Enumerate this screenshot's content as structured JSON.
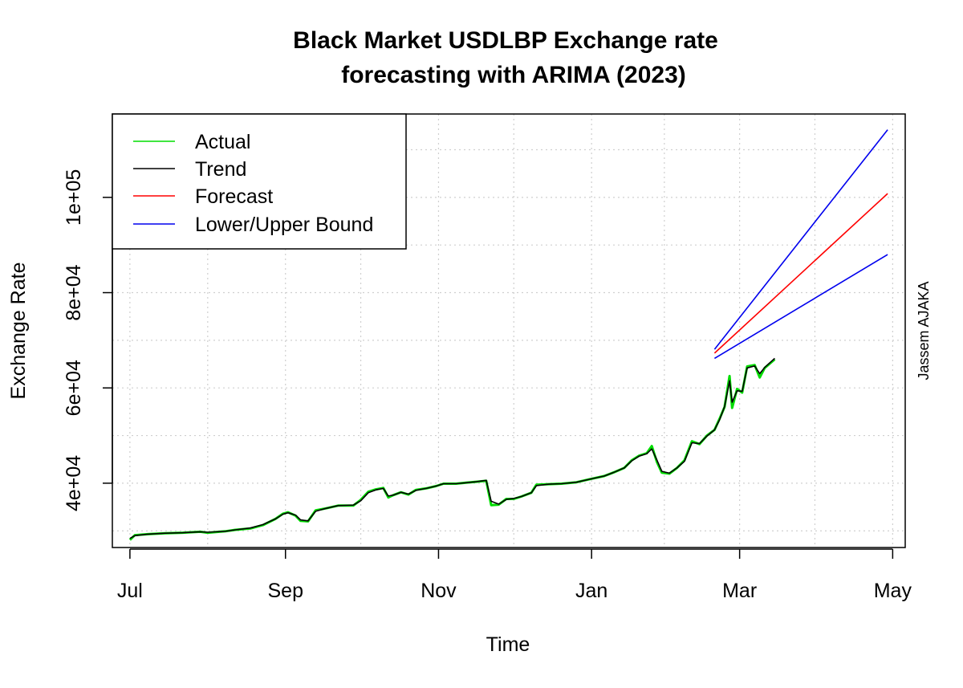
{
  "chart_data": {
    "type": "line",
    "title_line1": "Black Market USDLBP Exchange rate",
    "title_line2": "forecasting with ARIMA (2023)",
    "xlabel": "Time",
    "ylabel": "Exchange Rate",
    "side_text": "Jassem AJAKA",
    "x_range": [
      "2022-06-24",
      "2023-05-06"
    ],
    "ylim": [
      26500,
      117500
    ],
    "x_ticks": [
      {
        "date": "2022-07-01",
        "label": "Jul"
      },
      {
        "date": "2022-09-01",
        "label": "Sep"
      },
      {
        "date": "2022-11-01",
        "label": "Nov"
      },
      {
        "date": "2023-01-01",
        "label": "Jan"
      },
      {
        "date": "2023-03-01",
        "label": "Mar"
      },
      {
        "date": "2023-05-01",
        "label": "May"
      }
    ],
    "y_ticks": [
      {
        "value": 40000,
        "label": "4e+04"
      },
      {
        "value": 60000,
        "label": "6e+04"
      },
      {
        "value": 80000,
        "label": "8e+04"
      },
      {
        "value": 100000,
        "label": "1e+05"
      }
    ],
    "grid": true,
    "legend_position": "top-left",
    "series": [
      {
        "name": "Actual",
        "color": "#00dd00",
        "points": [
          [
            "2022-07-01",
            28100
          ],
          [
            "2022-07-03",
            29100
          ],
          [
            "2022-07-08",
            29300
          ],
          [
            "2022-07-15",
            29500
          ],
          [
            "2022-07-22",
            29600
          ],
          [
            "2022-07-29",
            29800
          ],
          [
            "2022-08-01",
            29600
          ],
          [
            "2022-08-08",
            29900
          ],
          [
            "2022-08-12",
            30200
          ],
          [
            "2022-08-18",
            30500
          ],
          [
            "2022-08-23",
            31200
          ],
          [
            "2022-08-28",
            32500
          ],
          [
            "2022-08-31",
            33600
          ],
          [
            "2022-09-02",
            33900
          ],
          [
            "2022-09-05",
            33200
          ],
          [
            "2022-09-07",
            32100
          ],
          [
            "2022-09-10",
            32000
          ],
          [
            "2022-09-13",
            34300
          ],
          [
            "2022-09-17",
            34700
          ],
          [
            "2022-09-22",
            35300
          ],
          [
            "2022-09-28",
            35300
          ],
          [
            "2022-10-01",
            36500
          ],
          [
            "2022-10-04",
            38200
          ],
          [
            "2022-10-07",
            38700
          ],
          [
            "2022-10-10",
            39000
          ],
          [
            "2022-10-12",
            37000
          ],
          [
            "2022-10-14",
            37500
          ],
          [
            "2022-10-17",
            38100
          ],
          [
            "2022-10-20",
            37600
          ],
          [
            "2022-10-23",
            38600
          ],
          [
            "2022-10-27",
            38900
          ],
          [
            "2022-10-31",
            39400
          ],
          [
            "2022-11-03",
            39900
          ],
          [
            "2022-11-08",
            39900
          ],
          [
            "2022-11-12",
            40100
          ],
          [
            "2022-11-16",
            40300
          ],
          [
            "2022-11-20",
            40500
          ],
          [
            "2022-11-22",
            35400
          ],
          [
            "2022-11-25",
            35500
          ],
          [
            "2022-11-28",
            36700
          ],
          [
            "2022-12-01",
            36700
          ],
          [
            "2022-12-04",
            37200
          ],
          [
            "2022-12-08",
            38000
          ],
          [
            "2022-12-10",
            39700
          ],
          [
            "2022-12-15",
            39800
          ],
          [
            "2022-12-20",
            39900
          ],
          [
            "2022-12-26",
            40200
          ],
          [
            "2022-12-31",
            40800
          ],
          [
            "2023-01-06",
            41500
          ],
          [
            "2023-01-10",
            42300
          ],
          [
            "2023-01-14",
            43200
          ],
          [
            "2023-01-17",
            44800
          ],
          [
            "2023-01-20",
            45800
          ],
          [
            "2023-01-23",
            46300
          ],
          [
            "2023-01-25",
            47800
          ],
          [
            "2023-01-27",
            44500
          ],
          [
            "2023-01-29",
            42200
          ],
          [
            "2023-02-01",
            42000
          ],
          [
            "2023-02-04",
            43200
          ],
          [
            "2023-02-07",
            44800
          ],
          [
            "2023-02-10",
            48800
          ],
          [
            "2023-02-13",
            48200
          ],
          [
            "2023-02-16",
            50000
          ],
          [
            "2023-02-19",
            51200
          ],
          [
            "2023-02-21",
            53500
          ],
          [
            "2023-02-23",
            56000
          ],
          [
            "2023-02-25",
            62500
          ],
          [
            "2023-02-26",
            55800
          ],
          [
            "2023-02-28",
            59800
          ],
          [
            "2023-03-02",
            59000
          ],
          [
            "2023-03-04",
            64500
          ],
          [
            "2023-03-07",
            64800
          ],
          [
            "2023-03-09",
            62200
          ],
          [
            "2023-03-11",
            64200
          ],
          [
            "2023-03-15",
            66000
          ]
        ]
      },
      {
        "name": "Trend",
        "color": "#000000",
        "points": [
          [
            "2022-07-01",
            28400
          ],
          [
            "2022-07-03",
            29000
          ],
          [
            "2022-07-08",
            29300
          ],
          [
            "2022-07-15",
            29500
          ],
          [
            "2022-07-22",
            29600
          ],
          [
            "2022-07-29",
            29800
          ],
          [
            "2022-08-01",
            29700
          ],
          [
            "2022-08-08",
            29900
          ],
          [
            "2022-08-12",
            30200
          ],
          [
            "2022-08-18",
            30600
          ],
          [
            "2022-08-23",
            31300
          ],
          [
            "2022-08-28",
            32500
          ],
          [
            "2022-08-31",
            33500
          ],
          [
            "2022-09-02",
            33800
          ],
          [
            "2022-09-05",
            33300
          ],
          [
            "2022-09-07",
            32300
          ],
          [
            "2022-09-10",
            32100
          ],
          [
            "2022-09-13",
            34100
          ],
          [
            "2022-09-17",
            34700
          ],
          [
            "2022-09-22",
            35300
          ],
          [
            "2022-09-28",
            35400
          ],
          [
            "2022-10-01",
            36300
          ],
          [
            "2022-10-04",
            38000
          ],
          [
            "2022-10-07",
            38600
          ],
          [
            "2022-10-10",
            38900
          ],
          [
            "2022-10-12",
            37300
          ],
          [
            "2022-10-14",
            37500
          ],
          [
            "2022-10-17",
            38100
          ],
          [
            "2022-10-20",
            37700
          ],
          [
            "2022-10-23",
            38500
          ],
          [
            "2022-10-27",
            38900
          ],
          [
            "2022-10-31",
            39400
          ],
          [
            "2022-11-03",
            39900
          ],
          [
            "2022-11-08",
            39900
          ],
          [
            "2022-11-12",
            40100
          ],
          [
            "2022-11-16",
            40300
          ],
          [
            "2022-11-20",
            40600
          ],
          [
            "2022-11-22",
            36200
          ],
          [
            "2022-11-25",
            35600
          ],
          [
            "2022-11-28",
            36600
          ],
          [
            "2022-12-01",
            36800
          ],
          [
            "2022-12-04",
            37200
          ],
          [
            "2022-12-08",
            38000
          ],
          [
            "2022-12-10",
            39500
          ],
          [
            "2022-12-15",
            39800
          ],
          [
            "2022-12-20",
            39900
          ],
          [
            "2022-12-26",
            40200
          ],
          [
            "2022-12-31",
            40800
          ],
          [
            "2023-01-06",
            41500
          ],
          [
            "2023-01-10",
            42300
          ],
          [
            "2023-01-14",
            43200
          ],
          [
            "2023-01-17",
            44700
          ],
          [
            "2023-01-20",
            45700
          ],
          [
            "2023-01-23",
            46200
          ],
          [
            "2023-01-25",
            47200
          ],
          [
            "2023-01-27",
            44900
          ],
          [
            "2023-01-29",
            42500
          ],
          [
            "2023-02-01",
            42100
          ],
          [
            "2023-02-04",
            43200
          ],
          [
            "2023-02-07",
            44600
          ],
          [
            "2023-02-10",
            48500
          ],
          [
            "2023-02-13",
            48300
          ],
          [
            "2023-02-16",
            49900
          ],
          [
            "2023-02-19",
            51200
          ],
          [
            "2023-02-21",
            53300
          ],
          [
            "2023-02-23",
            56100
          ],
          [
            "2023-02-25",
            61500
          ],
          [
            "2023-02-26",
            57000
          ],
          [
            "2023-02-28",
            59400
          ],
          [
            "2023-03-02",
            59300
          ],
          [
            "2023-03-04",
            64200
          ],
          [
            "2023-03-07",
            64600
          ],
          [
            "2023-03-09",
            63000
          ],
          [
            "2023-03-11",
            64300
          ],
          [
            "2023-03-15",
            66200
          ]
        ]
      },
      {
        "name": "Forecast",
        "color": "#ff0000",
        "points": [
          [
            "2023-02-19",
            67300
          ],
          [
            "2023-04-29",
            100800
          ]
        ]
      },
      {
        "name": "Lower/Upper Bound",
        "color": "#0000ee",
        "lines": [
          [
            [
              "2023-02-19",
              66200
            ],
            [
              "2023-04-29",
              88000
            ]
          ],
          [
            [
              "2023-02-19",
              68100
            ],
            [
              "2023-04-29",
              114200
            ]
          ]
        ]
      }
    ]
  }
}
